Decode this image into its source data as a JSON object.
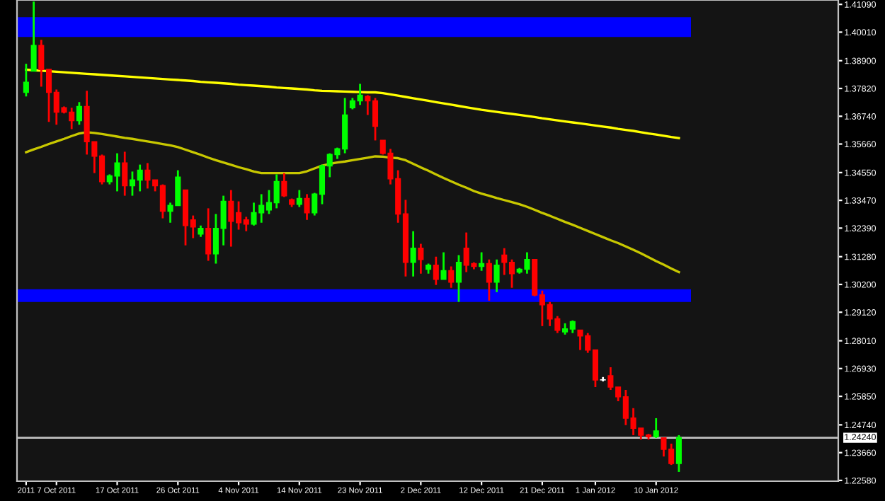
{
  "chart_data": {
    "type": "candlestick",
    "categories": [
      "2011",
      null,
      null,
      null,
      "7 Oct 2011",
      null,
      null,
      null,
      null,
      null,
      null,
      null,
      "17 Oct 2011",
      null,
      null,
      null,
      null,
      null,
      null,
      null,
      "26 Oct 2011",
      null,
      null,
      null,
      null,
      null,
      null,
      null,
      "4 Nov 2011",
      null,
      null,
      null,
      null,
      null,
      null,
      null,
      "14 Nov 2011",
      null,
      null,
      null,
      null,
      null,
      null,
      null,
      "23 Nov 2011",
      null,
      null,
      null,
      null,
      null,
      null,
      null,
      "2 Dec 2011",
      null,
      null,
      null,
      null,
      null,
      null,
      null,
      "12 Dec 2011",
      null,
      null,
      null,
      null,
      null,
      null,
      null,
      "21 Dec 2011",
      null,
      null,
      null,
      null,
      null,
      null,
      "1 Jan 2012",
      null,
      null,
      null,
      null,
      null,
      null,
      null,
      "10 Jan 2012",
      null,
      null,
      null
    ],
    "ohlc": [
      [
        1.3767,
        1.3878,
        1.3751,
        1.3806
      ],
      [
        1.385,
        1.412,
        1.385,
        1.3949
      ],
      [
        1.3949,
        1.3971,
        1.3789,
        1.3856
      ],
      [
        1.3856,
        1.3856,
        1.3652,
        1.3767
      ],
      [
        1.3767,
        1.3778,
        1.3641,
        1.369
      ],
      [
        1.3707,
        1.3712,
        1.3685,
        1.369
      ],
      [
        1.369,
        1.3707,
        1.3624,
        1.3657
      ],
      [
        1.3657,
        1.3729,
        1.3641,
        1.3712
      ],
      [
        1.3712,
        1.3773,
        1.3525,
        1.3575
      ],
      [
        1.3575,
        1.3575,
        1.3453,
        1.3519
      ],
      [
        1.3519,
        1.3525,
        1.3409,
        1.342
      ],
      [
        1.342,
        1.3448,
        1.3409,
        1.3442
      ],
      [
        1.3442,
        1.353,
        1.3382,
        1.3492
      ],
      [
        1.3492,
        1.3536,
        1.3365,
        1.3404
      ],
      [
        1.3404,
        1.3459,
        1.3365,
        1.3426
      ],
      [
        1.3426,
        1.3486,
        1.3382,
        1.3464
      ],
      [
        1.3464,
        1.3492,
        1.3393,
        1.3426
      ],
      [
        1.3426,
        1.3426,
        1.3382,
        1.3404
      ],
      [
        1.3404,
        1.3409,
        1.3277,
        1.3305
      ],
      [
        1.3305,
        1.3338,
        1.326,
        1.3327
      ],
      [
        1.3327,
        1.3464,
        1.3327,
        1.3437
      ],
      [
        1.3387,
        1.3387,
        1.3172,
        1.3249
      ],
      [
        1.3271,
        1.3288,
        1.32,
        1.3244
      ],
      [
        1.3216,
        1.3249,
        1.3205,
        1.3238
      ],
      [
        1.3238,
        1.3316,
        1.3112,
        1.3139
      ],
      [
        1.3139,
        1.3294,
        1.3101,
        1.3238
      ],
      [
        1.3238,
        1.3365,
        1.3172,
        1.3343
      ],
      [
        1.3343,
        1.3387,
        1.3167,
        1.3266
      ],
      [
        1.3299,
        1.3343,
        1.3233,
        1.326
      ],
      [
        1.3271,
        1.3283,
        1.3227,
        1.3255
      ],
      [
        1.3255,
        1.3338,
        1.3249,
        1.3299
      ],
      [
        1.3299,
        1.3371,
        1.326,
        1.3327
      ],
      [
        1.331,
        1.3387,
        1.3294,
        1.3338
      ],
      [
        1.3338,
        1.3448,
        1.3316,
        1.342
      ],
      [
        1.342,
        1.3453,
        1.336,
        1.3365
      ],
      [
        1.3349,
        1.3354,
        1.3321,
        1.3332
      ],
      [
        1.3332,
        1.3387,
        1.3321,
        1.3354
      ],
      [
        1.3354,
        1.3371,
        1.3271,
        1.3299
      ],
      [
        1.3299,
        1.3376,
        1.3288,
        1.3371
      ],
      [
        1.3371,
        1.3486,
        1.3332,
        1.3481
      ],
      [
        1.3481,
        1.353,
        1.3437,
        1.3525
      ],
      [
        1.3525,
        1.3552,
        1.3508,
        1.3547
      ],
      [
        1.3547,
        1.3745,
        1.353,
        1.3679
      ],
      [
        1.3707,
        1.3745,
        1.3701,
        1.3734
      ],
      [
        1.3734,
        1.38,
        1.3718,
        1.3756
      ],
      [
        1.3751,
        1.3756,
        1.3679,
        1.3734
      ],
      [
        1.3734,
        1.3745,
        1.358,
        1.3635
      ],
      [
        1.358,
        1.358,
        1.3525,
        1.353
      ],
      [
        1.353,
        1.3547,
        1.3409,
        1.3431
      ],
      [
        1.3431,
        1.3464,
        1.326,
        1.3294
      ],
      [
        1.3294,
        1.3349,
        1.3051,
        1.3106
      ],
      [
        1.3106,
        1.3227,
        1.3051,
        1.3161
      ],
      [
        1.3161,
        1.3178,
        1.3062,
        1.3117
      ],
      [
        1.3079,
        1.3101,
        1.3062,
        1.3095
      ],
      [
        1.3095,
        1.3128,
        1.3018,
        1.304
      ],
      [
        1.304,
        1.3145,
        1.304,
        1.3073
      ],
      [
        1.3073,
        1.309,
        1.3007,
        1.3029
      ],
      [
        1.3029,
        1.3134,
        1.2952,
        1.3106
      ],
      [
        1.3161,
        1.3222,
        1.3068,
        1.3095
      ],
      [
        1.3101,
        1.3106,
        1.3079,
        1.309
      ],
      [
        1.309,
        1.3145,
        1.3073,
        1.3101
      ],
      [
        1.3101,
        1.3117,
        1.2957,
        1.3029
      ],
      [
        1.3029,
        1.3117,
        1.299,
        1.3095
      ],
      [
        1.3134,
        1.3161,
        1.3057,
        1.3106
      ],
      [
        1.3106,
        1.3117,
        1.3007,
        1.3062
      ],
      [
        1.3068,
        1.3084,
        1.3062,
        1.3079
      ],
      [
        1.3079,
        1.3145,
        1.3062,
        1.3117
      ],
      [
        1.3117,
        1.3117,
        1.2974,
        1.2979
      ],
      [
        1.2979,
        1.2996,
        1.2858,
        1.2941
      ],
      [
        1.2941,
        1.2952,
        1.2858,
        1.2886
      ],
      [
        1.2886,
        1.2897,
        1.2831,
        1.2842
      ],
      [
        1.2836,
        1.2869,
        1.2825,
        1.2847
      ],
      [
        1.2847,
        1.288,
        1.2831,
        1.2875
      ],
      [
        1.2842,
        1.2842,
        1.2765,
        1.282
      ],
      [
        1.282,
        1.2831,
        1.2754,
        1.2765
      ],
      [
        1.2765,
        1.2765,
        1.2621,
        1.2649
      ],
      [
        1.2649,
        1.266,
        1.2643,
        1.2649
      ],
      [
        1.2665,
        1.2698,
        1.261,
        1.2621
      ],
      [
        1.2621,
        1.2621,
        1.2566,
        1.2583
      ],
      [
        1.2583,
        1.261,
        1.2473,
        1.25
      ],
      [
        1.25,
        1.2539,
        1.2434,
        1.2461
      ],
      [
        1.2461,
        1.2461,
        1.2417,
        1.2434
      ],
      [
        1.2434,
        1.2439,
        1.2417,
        1.2428
      ],
      [
        1.2428,
        1.25,
        1.2423,
        1.245
      ],
      [
        1.2423,
        1.2423,
        1.2351,
        1.2379
      ],
      [
        1.2379,
        1.2401,
        1.2318,
        1.2324
      ],
      [
        1.2324,
        1.2434,
        1.2291,
        1.2424
      ]
    ],
    "colors": [
      "#00ff00",
      "#00ff00",
      "#ff0000",
      "#ff0000",
      "#ff0000",
      "#ff0000",
      "#ff0000",
      "#00ff00",
      "#ff0000",
      "#ff0000",
      "#ff0000",
      "#00ff00",
      "#00ff00",
      "#ff0000",
      "#00ff00",
      "#00ff00",
      "#ff0000",
      "#ff0000",
      "#ff0000",
      "#00ff00",
      "#00ff00",
      "#ff0000",
      "#ff0000",
      "#00ff00",
      "#ff0000",
      "#00ff00",
      "#00ff00",
      "#ff0000",
      "#ff0000",
      "#ff0000",
      "#00ff00",
      "#00ff00",
      "#00ff00",
      "#00ff00",
      "#ff0000",
      "#ff0000",
      "#00ff00",
      "#ff0000",
      "#00ff00",
      "#00ff00",
      "#00ff00",
      "#00ff00",
      "#00ff00",
      "#00ff00",
      "#00ff00",
      "#ff0000",
      "#ff0000",
      "#ff0000",
      "#ff0000",
      "#ff0000",
      "#ff0000",
      "#00ff00",
      "#ff0000",
      "#00ff00",
      "#ff0000",
      "#00ff00",
      "#ff0000",
      "#00ff00",
      "#ff0000",
      "#ff0000",
      "#00ff00",
      "#ff0000",
      "#00ff00",
      "#ff0000",
      "#ff0000",
      "#00ff00",
      "#00ff00",
      "#ff0000",
      "#ff0000",
      "#ff0000",
      "#ff0000",
      "#00ff00",
      "#00ff00",
      "#ff0000",
      "#ff0000",
      "#ff0000",
      "#ffffff",
      "#ff0000",
      "#ff0000",
      "#ff0000",
      "#ff0000",
      "#ff0000",
      "#ff0000",
      "#00ff00",
      "#ff0000",
      "#ff0000",
      "#00ff00"
    ],
    "series": [
      {
        "type": "line",
        "color": "#ffff00",
        "values": [
          1.3855,
          1.3853,
          1.3851,
          1.3849,
          1.3847,
          1.3845,
          1.3843,
          1.3841,
          1.3839,
          1.3837,
          1.3835,
          1.3833,
          1.3831,
          1.3829,
          1.3827,
          1.3825,
          1.3823,
          1.3821,
          1.3819,
          1.3817,
          1.3815,
          1.3813,
          1.3811,
          1.3808,
          1.3806,
          1.3804,
          1.3802,
          1.38,
          1.3797,
          1.3795,
          1.3793,
          1.3791,
          1.3789,
          1.3786,
          1.3784,
          1.3782,
          1.378,
          1.3778,
          1.3775,
          1.3773,
          1.3772,
          1.3771,
          1.377,
          1.3769,
          1.3768,
          1.3767,
          1.3767,
          1.3764,
          1.3759,
          1.3754,
          1.3749,
          1.3744,
          1.3739,
          1.3734,
          1.3729,
          1.3724,
          1.3719,
          1.3714,
          1.3709,
          1.3704,
          1.3699,
          1.3695,
          1.3691,
          1.3687,
          1.3683,
          1.3679,
          1.3675,
          1.3671,
          1.3666,
          1.3662,
          1.3658,
          1.3654,
          1.365,
          1.3646,
          1.3642,
          1.3638,
          1.3634,
          1.363,
          1.3625,
          1.3621,
          1.3617,
          1.3612,
          1.3607,
          1.3603,
          1.3598,
          1.3593,
          1.3589
        ]
      },
      {
        "type": "line",
        "color": "#c8c800",
        "values": [
          1.3534,
          1.3545,
          1.3555,
          1.3566,
          1.3576,
          1.3586,
          1.3597,
          1.3607,
          1.3612,
          1.3609,
          1.3605,
          1.36,
          1.3595,
          1.359,
          1.3586,
          1.3581,
          1.3576,
          1.3571,
          1.3566,
          1.3561,
          1.3554,
          1.3544,
          1.3534,
          1.3524,
          1.3513,
          1.3503,
          1.3494,
          1.3485,
          1.3476,
          1.3468,
          1.3459,
          1.3453,
          1.3453,
          1.3453,
          1.3453,
          1.3453,
          1.3453,
          1.346,
          1.3471,
          1.3482,
          1.3489,
          1.3494,
          1.3498,
          1.3503,
          1.3508,
          1.3513,
          1.3518,
          1.3517,
          1.3513,
          1.3511,
          1.3503,
          1.3489,
          1.3475,
          1.3462,
          1.3448,
          1.3434,
          1.3421,
          1.3408,
          1.3396,
          1.3383,
          1.3373,
          1.3365,
          1.3356,
          1.3348,
          1.334,
          1.3332,
          1.3322,
          1.331,
          1.3298,
          1.3287,
          1.3275,
          1.3263,
          1.3252,
          1.324,
          1.3228,
          1.3216,
          1.3204,
          1.3192,
          1.3181,
          1.3168,
          1.3155,
          1.3141,
          1.3126,
          1.3111,
          1.3097,
          1.3082,
          1.3068
        ]
      }
    ],
    "bands": [
      {
        "axis": "y",
        "from": 1.3982,
        "to": 1.4059,
        "color": "#0000ff"
      },
      {
        "axis": "y",
        "from": 1.2952,
        "to": 1.3001,
        "color": "#0000ff"
      }
    ],
    "ref_lines": [
      {
        "axis": "y",
        "value": 1.2424,
        "label": "1.24240",
        "color": "#c0c0c0"
      }
    ],
    "ylim": [
      1.2255,
      1.4126
    ],
    "yticks": [
      {
        "value": 1.4109,
        "label": "1.41090"
      },
      {
        "value": 1.4001,
        "label": "1.40010"
      },
      {
        "value": 1.389,
        "label": "1.38900"
      },
      {
        "value": 1.3782,
        "label": "1.37820"
      },
      {
        "value": 1.3674,
        "label": "1.36740"
      },
      {
        "value": 1.3566,
        "label": "1.35660"
      },
      {
        "value": 1.3455,
        "label": "1.34550"
      },
      {
        "value": 1.3347,
        "label": "1.33470"
      },
      {
        "value": 1.3239,
        "label": "1.32390"
      },
      {
        "value": 1.3128,
        "label": "1.31280"
      },
      {
        "value": 1.302,
        "label": "1.30200"
      },
      {
        "value": 1.2912,
        "label": "1.29120"
      },
      {
        "value": 1.2801,
        "label": "1.28010"
      },
      {
        "value": 1.2693,
        "label": "1.26930"
      },
      {
        "value": 1.2585,
        "label": "1.25850"
      },
      {
        "value": 1.2474,
        "label": "1.24740"
      },
      {
        "value": 1.2366,
        "label": "1.23660"
      },
      {
        "value": 1.2258,
        "label": "1.22580"
      }
    ],
    "grid": false,
    "legend": false
  }
}
